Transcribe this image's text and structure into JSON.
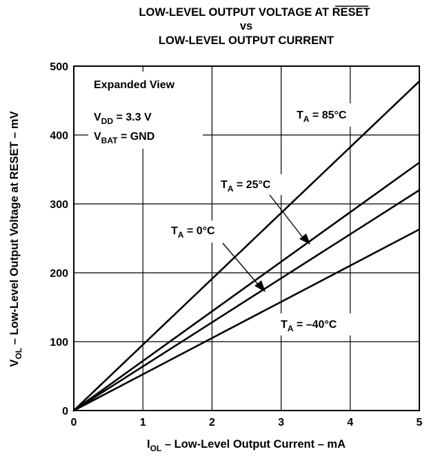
{
  "chart_data": {
    "type": "line",
    "title": {
      "line1": "LOW-LEVEL OUTPUT VOLTAGE AT ",
      "line1_overlined": "RESET",
      "line2": "vs",
      "line3": "LOW-LEVEL OUTPUT CURRENT"
    },
    "xlabel": {
      "main": "I",
      "sub": "OL",
      "rest": " – Low-Level Output Current – mA"
    },
    "ylabel": {
      "main": "V",
      "sub": "OL",
      "rest": " – Low-Level Output Voltage at RESET – mV"
    },
    "xlim": [
      0,
      5
    ],
    "ylim": [
      0,
      500
    ],
    "xticks": [
      "0",
      "1",
      "2",
      "3",
      "4",
      "5"
    ],
    "yticks": [
      "0",
      "100",
      "200",
      "300",
      "400",
      "500"
    ],
    "grid": true,
    "series": [
      {
        "name": "T_A = 85°C",
        "x": [
          0,
          5
        ],
        "y": [
          0,
          478
        ]
      },
      {
        "name": "T_A = 25°C",
        "x": [
          0,
          5
        ],
        "y": [
          0,
          360
        ]
      },
      {
        "name": "T_A = 0°C",
        "x": [
          0,
          5
        ],
        "y": [
          0,
          320
        ]
      },
      {
        "name": "T_A = –40°C",
        "x": [
          0,
          5
        ],
        "y": [
          0,
          263
        ]
      }
    ],
    "annotations": {
      "view": "Expanded View",
      "vdd": {
        "main": "V",
        "sub": "DD",
        "rest": " = 3.3 V"
      },
      "vbat": {
        "main": "V",
        "sub": "BAT",
        "rest": " = GND"
      },
      "labels": [
        {
          "main": "T",
          "sub": "A",
          "rest": " = 85°C"
        },
        {
          "main": "T",
          "sub": "A",
          "rest": " = 25°C"
        },
        {
          "main": "T",
          "sub": "A",
          "rest": " = 0°C"
        },
        {
          "main": "T",
          "sub": "A",
          "rest": " = –40°C"
        }
      ]
    }
  }
}
